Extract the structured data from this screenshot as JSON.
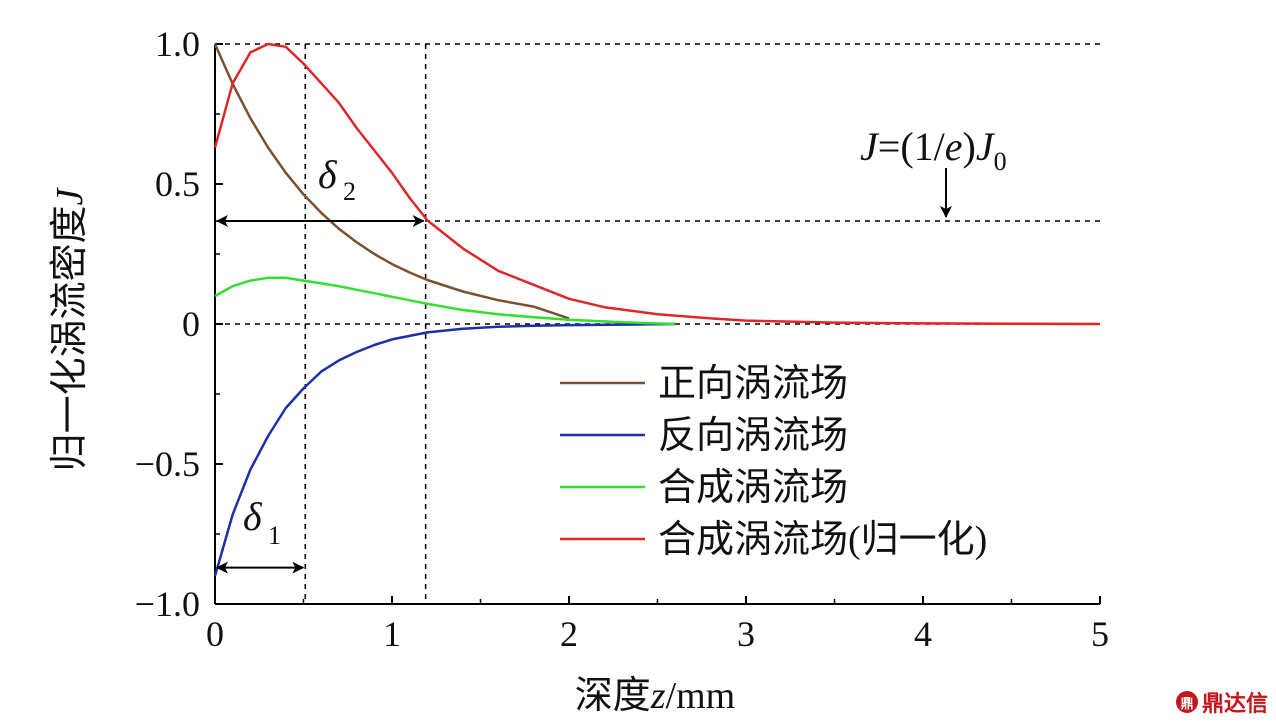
{
  "chart_data": {
    "type": "line",
    "xlabel_prefix": "深度",
    "xlabel_var": "z",
    "xlabel_unit": "/mm",
    "ylabel_prefix": "归一化涡流密度",
    "ylabel_var": "J",
    "xlim": [
      0,
      5
    ],
    "ylim": [
      -1.0,
      1.0
    ],
    "x_ticks": [
      "0",
      "1",
      "2",
      "3",
      "4",
      "5"
    ],
    "y_ticks": [
      "1.0",
      "0.5",
      "0",
      "−0.5",
      "−1.0"
    ],
    "y_tick_values": [
      1.0,
      0.5,
      0,
      -0.5,
      -1.0
    ],
    "reference_level": 0.3679,
    "delta1_x": 0.51,
    "delta2_x": 1.19,
    "annotation_J_eq": {
      "J": "J",
      "eq": "=(1/",
      "e": "e",
      "close": ")",
      "J0": "J",
      "sub0": "0"
    },
    "annotation_delta1": {
      "symbol": "δ",
      "sub": "1"
    },
    "annotation_delta2": {
      "symbol": "δ",
      "sub": "2"
    },
    "series": [
      {
        "name": "正向涡流场",
        "color": "#7a5230",
        "x": [
          0,
          0.1,
          0.2,
          0.3,
          0.4,
          0.5,
          0.6,
          0.7,
          0.8,
          0.9,
          1.0,
          1.1,
          1.2,
          1.4,
          1.6,
          1.8,
          2.0
        ],
        "y": [
          1.0,
          0.857,
          0.735,
          0.63,
          0.54,
          0.463,
          0.397,
          0.34,
          0.292,
          0.25,
          0.214,
          0.184,
          0.157,
          0.116,
          0.085,
          0.062,
          0.02
        ]
      },
      {
        "name": "反向涡流场",
        "color": "#1f2fa8",
        "x": [
          0,
          0.1,
          0.2,
          0.3,
          0.4,
          0.5,
          0.6,
          0.7,
          0.8,
          0.9,
          1.0,
          1.2,
          1.4,
          1.6,
          1.8,
          2.0,
          2.3,
          2.6
        ],
        "y": [
          -0.9,
          -0.68,
          -0.52,
          -0.4,
          -0.3,
          -0.23,
          -0.17,
          -0.13,
          -0.1,
          -0.075,
          -0.055,
          -0.03,
          -0.017,
          -0.01,
          -0.006,
          -0.004,
          -0.002,
          0
        ]
      },
      {
        "name": "合成涡流场",
        "color": "#2fe02f",
        "x": [
          0,
          0.1,
          0.2,
          0.3,
          0.4,
          0.5,
          0.6,
          0.7,
          0.8,
          0.9,
          1.0,
          1.2,
          1.4,
          1.6,
          1.8,
          2.0,
          2.3,
          2.6
        ],
        "y": [
          0.1,
          0.135,
          0.155,
          0.165,
          0.165,
          0.155,
          0.145,
          0.135,
          0.122,
          0.11,
          0.097,
          0.072,
          0.05,
          0.035,
          0.024,
          0.015,
          0.006,
          0
        ]
      },
      {
        "name": "合成涡流场(归一化)",
        "color": "#e0262b",
        "x": [
          0,
          0.1,
          0.2,
          0.3,
          0.4,
          0.5,
          0.6,
          0.7,
          0.8,
          0.9,
          1.0,
          1.1,
          1.2,
          1.4,
          1.6,
          1.8,
          2.0,
          2.2,
          2.5,
          2.8,
          3.0,
          3.5,
          4.0,
          4.5,
          5.0
        ],
        "y": [
          0.63,
          0.86,
          0.97,
          1.0,
          0.99,
          0.93,
          0.86,
          0.79,
          0.7,
          0.62,
          0.54,
          0.45,
          0.37,
          0.27,
          0.19,
          0.14,
          0.09,
          0.06,
          0.035,
          0.02,
          0.012,
          0.005,
          0.002,
          0.001,
          0
        ]
      }
    ],
    "legend_position": "center-right"
  },
  "watermark": {
    "logo": "鼎",
    "text": "鼎达信"
  }
}
